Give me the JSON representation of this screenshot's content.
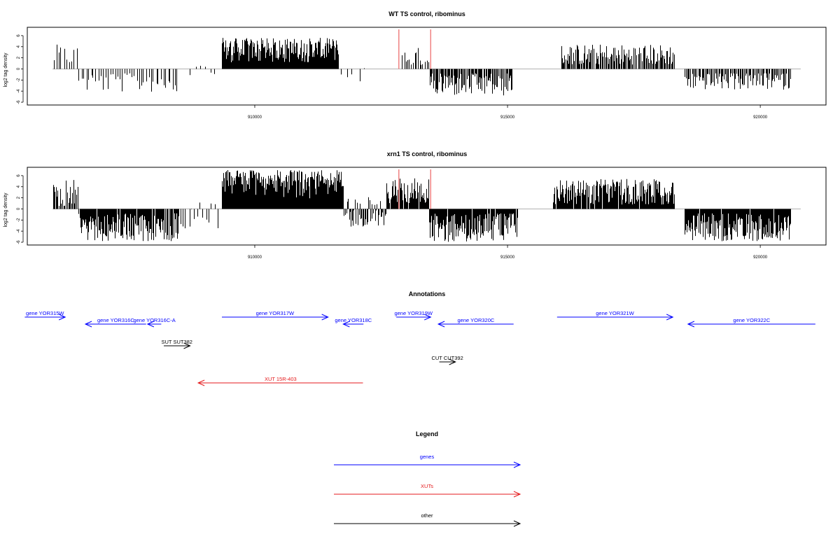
{
  "colors": {
    "gene": "#0000ff",
    "xut": "#e41a1c",
    "other": "#000000",
    "marker": "#f08080",
    "bars": "#000000",
    "baseline": "#999999"
  },
  "chart_data": [
    {
      "type": "bar",
      "title": "WT TS control, ribominus",
      "ylabel": "log2 tag density",
      "xlim": [
        905500,
        921300
      ],
      "ylim": [
        -6.5,
        7.5
      ],
      "yticks": [
        -6,
        -4,
        -2,
        0,
        2,
        4,
        6
      ],
      "xticks": [
        910000,
        915000,
        920000
      ],
      "marker_lines": [
        912850,
        913480
      ],
      "regions": [
        {
          "start": 906000,
          "end": 906500,
          "min": 0.8,
          "max": 4.4,
          "n": 10
        },
        {
          "start": 906500,
          "end": 908500,
          "min": -4.3,
          "max": -0.8,
          "n": 42
        },
        {
          "start": 908700,
          "end": 909300,
          "min": -1.5,
          "max": 1.0,
          "n": 6
        },
        {
          "start": 909350,
          "end": 911650,
          "min": 1.2,
          "max": 5.6,
          "n": 260
        },
        {
          "start": 911700,
          "end": 912200,
          "min": -2.3,
          "max": 0.7,
          "n": 5
        },
        {
          "start": 912900,
          "end": 913450,
          "min": 0.6,
          "max": 3.9,
          "n": 16
        },
        {
          "start": 913450,
          "end": 915100,
          "min": -5.0,
          "max": -0.8,
          "n": 95
        },
        {
          "start": 916050,
          "end": 918300,
          "min": 0.8,
          "max": 4.5,
          "n": 120
        },
        {
          "start": 918500,
          "end": 920600,
          "min": -3.8,
          "max": -0.8,
          "n": 95
        }
      ]
    },
    {
      "type": "bar",
      "title": "xrn1 TS control, ribominus",
      "ylabel": "log2 tag density",
      "xlim": [
        905500,
        921300
      ],
      "ylim": [
        -6.5,
        7.5
      ],
      "yticks": [
        -6,
        -4,
        -2,
        0,
        2,
        4,
        6
      ],
      "xticks": [
        910000,
        915000,
        920000
      ],
      "marker_lines": [
        912850,
        913480
      ],
      "regions": [
        {
          "start": 906000,
          "end": 906500,
          "min": 0.5,
          "max": 5.6,
          "n": 25
        },
        {
          "start": 906500,
          "end": 908500,
          "min": -5.8,
          "max": -0.8,
          "n": 150
        },
        {
          "start": 908500,
          "end": 909300,
          "min": -3.5,
          "max": 1.2,
          "n": 14
        },
        {
          "start": 909350,
          "end": 911750,
          "min": 1.5,
          "max": 7.0,
          "n": 450
        },
        {
          "start": 911750,
          "end": 912600,
          "min": -3.2,
          "max": 2.2,
          "n": 45
        },
        {
          "start": 912600,
          "end": 913450,
          "min": 1.0,
          "max": 5.5,
          "n": 70
        },
        {
          "start": 913450,
          "end": 915200,
          "min": -6.0,
          "max": -0.8,
          "n": 160
        },
        {
          "start": 915900,
          "end": 918300,
          "min": 0.8,
          "max": 5.4,
          "n": 220
        },
        {
          "start": 918500,
          "end": 920600,
          "min": -5.8,
          "max": -0.8,
          "n": 200
        }
      ]
    }
  ],
  "annotations": {
    "title": "Annotations",
    "xlim": [
      905500,
      921300
    ],
    "items": [
      {
        "label": "gene YOR315W",
        "start": 905450,
        "end": 906250,
        "dir": "right",
        "row": 0,
        "kind": "gene"
      },
      {
        "label": "gene YOR316C",
        "start": 906650,
        "end": 907850,
        "dir": "left",
        "row": 1,
        "kind": "gene"
      },
      {
        "label": "gene YOR316C-A",
        "start": 907880,
        "end": 908150,
        "dir": "left",
        "row": 1,
        "kind": "gene"
      },
      {
        "label": "gene YOR317W",
        "start": 909350,
        "end": 911450,
        "dir": "right",
        "row": 0,
        "kind": "gene"
      },
      {
        "label": "gene YOR318C",
        "start": 911750,
        "end": 912150,
        "dir": "left",
        "row": 1,
        "kind": "gene"
      },
      {
        "label": "gene YOR319W",
        "start": 912800,
        "end": 913480,
        "dir": "right",
        "row": 0,
        "kind": "gene"
      },
      {
        "label": "gene YOR320C",
        "start": 913630,
        "end": 915120,
        "dir": "left",
        "row": 1,
        "kind": "gene"
      },
      {
        "label": "gene YOR321W",
        "start": 915980,
        "end": 918270,
        "dir": "right",
        "row": 0,
        "kind": "gene"
      },
      {
        "label": "gene YOR322C",
        "start": 918570,
        "end": 921090,
        "dir": "left",
        "row": 1,
        "kind": "gene"
      },
      {
        "label": "SUT SUT382",
        "start": 908200,
        "end": 908720,
        "dir": "right",
        "row": 2,
        "kind": "other"
      },
      {
        "label": "CUT CUT392",
        "start": 913650,
        "end": 913970,
        "dir": "right",
        "row": 3,
        "kind": "other"
      },
      {
        "label": "XUT 15R-403",
        "start": 908880,
        "end": 912140,
        "dir": "left",
        "row": 4,
        "kind": "xut"
      }
    ]
  },
  "legend": {
    "title": "Legend",
    "items": [
      {
        "label": "genes",
        "kind": "gene"
      },
      {
        "label": "XUTs",
        "kind": "xut"
      },
      {
        "label": "other",
        "kind": "other"
      }
    ]
  }
}
